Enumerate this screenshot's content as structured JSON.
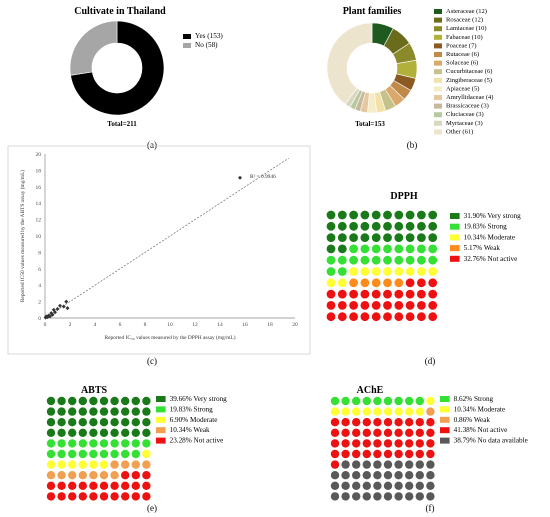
{
  "panels": {
    "a": {
      "label": "(a)",
      "title": "Cultivate in Thailand",
      "total": "Total=211",
      "chart_data": {
        "type": "pie",
        "title": "Cultivate in Thailand",
        "slices": [
          {
            "name": "Yes (153)",
            "value": 153,
            "color": "#000000"
          },
          {
            "name": "No (58)",
            "value": 58,
            "color": "#a6a6a6"
          }
        ]
      }
    },
    "b": {
      "label": "(b)",
      "title": "Plant families",
      "total": "Total=153",
      "chart_data": {
        "type": "pie",
        "title": "Plant families",
        "slices": [
          {
            "name": "Asteraceae (12)",
            "value": 12,
            "color": "#1e5a1e"
          },
          {
            "name": "Rosaceae (12)",
            "value": 12,
            "color": "#6b6b1c"
          },
          {
            "name": "Lamiaceae (10)",
            "value": 10,
            "color": "#8a8a2a"
          },
          {
            "name": "Fabaceae (10)",
            "value": 10,
            "color": "#b0b03a"
          },
          {
            "name": "Poaceae (7)",
            "value": 7,
            "color": "#8a5a22"
          },
          {
            "name": "Rutaceae (6)",
            "value": 6,
            "color": "#c08a4a"
          },
          {
            "name": "Solaceae (6)",
            "value": 6,
            "color": "#d9a86a"
          },
          {
            "name": "Cucurbitaceae (6)",
            "value": 6,
            "color": "#c6c08a"
          },
          {
            "name": "Zingiberaceae (5)",
            "value": 5,
            "color": "#f2e2a8"
          },
          {
            "name": "Apiaceae (5)",
            "value": 5,
            "color": "#f7ecc8"
          },
          {
            "name": "Amryllidaceae (4)",
            "value": 4,
            "color": "#e6c8a0"
          },
          {
            "name": "Brassicaceae (3)",
            "value": 3,
            "color": "#c9b79a"
          },
          {
            "name": "Cluciaceae (3)",
            "value": 3,
            "color": "#b8c9a0"
          },
          {
            "name": "Myrtaceae (3)",
            "value": 3,
            "color": "#d8d8c0"
          },
          {
            "name": "Other (61)",
            "value": 61,
            "color": "#ece4cc"
          }
        ]
      }
    },
    "c": {
      "label": "(c)",
      "chart_data": {
        "type": "scatter",
        "xlabel": "Reported IC₅₀ values measured by the DPPH assay (mg/mL)",
        "ylabel": "Reported IC50 values measured by the ABTS assay (mg/mL)",
        "xlim": [
          0,
          20
        ],
        "ylim": [
          0,
          20
        ],
        "xticks": [
          "0",
          "2",
          "4",
          "6",
          "8",
          "10",
          "12",
          "14",
          "16",
          "18",
          "20"
        ],
        "yticks": [
          "0",
          "2",
          "4",
          "6",
          "8",
          "10",
          "12",
          "14",
          "16",
          "18",
          "20"
        ],
        "annotation": "R² = 0.9946",
        "points": [
          [
            0.05,
            0.05
          ],
          [
            0.1,
            0.2
          ],
          [
            0.2,
            0.1
          ],
          [
            0.3,
            0.3
          ],
          [
            0.4,
            0.2
          ],
          [
            0.5,
            0.6
          ],
          [
            0.6,
            0.4
          ],
          [
            0.7,
            1.0
          ],
          [
            0.8,
            0.7
          ],
          [
            1.0,
            1.1
          ],
          [
            1.2,
            1.5
          ],
          [
            1.5,
            1.4
          ],
          [
            1.7,
            2.0
          ],
          [
            1.8,
            1.2
          ],
          [
            15.6,
            17.1
          ]
        ],
        "trendline": [
          [
            0,
            0
          ],
          [
            19.5,
            19.5
          ]
        ],
        "grid": false
      }
    },
    "d": {
      "label": "(d)",
      "title": "DPPH",
      "chart_data": {
        "type": "waffle",
        "title": "DPPH",
        "categories": [
          {
            "name": "31.90%  Very strong",
            "value": 31.9,
            "color": "#1a7a1a"
          },
          {
            "name": "19.83%  Strong",
            "value": 19.83,
            "color": "#33e033"
          },
          {
            "name": "10.34%  Moderate",
            "value": 10.34,
            "color": "#ffff33"
          },
          {
            "name": "5.17%  Weak",
            "value": 5.17,
            "color": "#ff8c1a"
          },
          {
            "name": "32.76%  Not active",
            "value": 32.76,
            "color": "#ee1111"
          }
        ]
      }
    },
    "e": {
      "label": "(e)",
      "title": "ABTS",
      "chart_data": {
        "type": "waffle",
        "title": "ABTS",
        "categories": [
          {
            "name": "39.66%  Very strong",
            "value": 39.66,
            "color": "#1a7a1a"
          },
          {
            "name": "19.83%  Strong",
            "value": 19.83,
            "color": "#33e033"
          },
          {
            "name": "6.90%  Moderate",
            "value": 6.9,
            "color": "#ffff33"
          },
          {
            "name": "10.34%  Weak",
            "value": 10.34,
            "color": "#f0a050"
          },
          {
            "name": "23.28%  Not active",
            "value": 23.28,
            "color": "#ee1111"
          }
        ]
      }
    },
    "f": {
      "label": "(f)",
      "title": "AChE",
      "chart_data": {
        "type": "waffle",
        "title": "AChE",
        "categories": [
          {
            "name": "8.62%  Strong",
            "value": 8.62,
            "color": "#33e033"
          },
          {
            "name": "10.34%  Moderate",
            "value": 10.34,
            "color": "#ffff33"
          },
          {
            "name": "0.86%  Weak",
            "value": 0.86,
            "color": "#f0a050"
          },
          {
            "name": "41.38%  Not active",
            "value": 41.38,
            "color": "#ee1111"
          },
          {
            "name": "38.79%  No data available",
            "value": 38.79,
            "color": "#595959"
          }
        ]
      }
    }
  }
}
